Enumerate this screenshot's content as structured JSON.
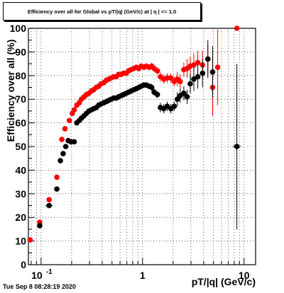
{
  "chart_data": {
    "type": "scatter",
    "title": "Efficiency over all for Global vs pT/|q| (GeV/c) at |  η | <= 1.0",
    "xlabel": "pT/|q| (GeV/c)",
    "ylabel": "Efficiency over all (%)",
    "xscale": "log",
    "xlim": [
      0.075,
      13
    ],
    "ylim": [
      0,
      100
    ],
    "grid": true,
    "legend": "none",
    "y_ticks": [
      "0",
      "10",
      "20",
      "30",
      "40",
      "50",
      "60",
      "70",
      "80",
      "90",
      "100"
    ],
    "x_tick_labels": [
      {
        "x": 0.1,
        "label": "10",
        "exp": "-1"
      },
      {
        "x": 1,
        "label": "1",
        "exp": ""
      },
      {
        "x": 10,
        "label": "10",
        "exp": ""
      }
    ],
    "series": [
      {
        "color": "#ff0000",
        "points": [
          [
            0.078,
            10.5,
            0,
            1
          ],
          [
            0.097,
            18,
            0.006,
            1
          ],
          [
            0.12,
            27.5,
            0,
            1
          ],
          [
            0.143,
            37,
            0,
            1
          ],
          [
            0.16,
            53,
            0,
            1
          ],
          [
            0.172,
            57.5,
            0,
            1
          ],
          [
            0.19,
            61,
            0,
            1
          ],
          [
            0.203,
            64,
            0,
            1
          ],
          [
            0.212,
            65.5,
            0,
            1
          ],
          [
            0.225,
            67.5,
            0,
            1
          ],
          [
            0.238,
            68.5,
            0,
            1
          ],
          [
            0.25,
            70,
            0,
            1
          ],
          [
            0.265,
            71,
            0,
            1
          ],
          [
            0.28,
            72,
            0,
            1
          ],
          [
            0.296,
            72.5,
            0,
            1
          ],
          [
            0.313,
            73.5,
            0,
            1
          ],
          [
            0.33,
            74,
            0,
            1
          ],
          [
            0.35,
            75,
            0,
            1
          ],
          [
            0.37,
            75.5,
            0,
            1
          ],
          [
            0.39,
            76.5,
            0,
            1
          ],
          [
            0.415,
            77,
            0,
            1
          ],
          [
            0.44,
            78,
            0,
            1
          ],
          [
            0.465,
            78.5,
            0,
            1
          ],
          [
            0.49,
            79,
            0,
            1
          ],
          [
            0.52,
            79.5,
            0,
            1
          ],
          [
            0.55,
            79.5,
            0,
            1
          ],
          [
            0.58,
            80.5,
            0,
            1
          ],
          [
            0.615,
            80.5,
            0,
            1
          ],
          [
            0.65,
            81,
            0,
            1
          ],
          [
            0.69,
            81,
            0,
            1
          ],
          [
            0.73,
            82,
            0,
            1
          ],
          [
            0.77,
            82.5,
            0,
            1
          ],
          [
            0.82,
            83,
            0,
            1
          ],
          [
            0.87,
            83.5,
            0,
            1
          ],
          [
            0.92,
            83,
            0,
            1
          ],
          [
            0.97,
            84,
            0,
            1
          ],
          [
            1.03,
            83.5,
            0,
            1.2
          ],
          [
            1.09,
            84,
            0,
            1.2
          ],
          [
            1.16,
            83.5,
            0,
            1.2
          ],
          [
            1.23,
            84,
            0,
            1.5
          ],
          [
            1.3,
            83,
            0,
            1.5
          ],
          [
            1.4,
            82,
            0,
            1.5
          ],
          [
            1.5,
            79.5,
            0,
            2
          ],
          [
            1.62,
            78.5,
            0,
            2
          ],
          [
            1.75,
            79,
            0,
            2
          ],
          [
            1.9,
            79,
            0,
            2
          ],
          [
            2.05,
            77.5,
            0,
            2
          ],
          [
            2.2,
            78.5,
            0,
            3
          ],
          [
            2.35,
            77.5,
            0,
            3
          ],
          [
            2.55,
            82.5,
            0,
            3
          ],
          [
            2.75,
            83,
            0,
            4
          ],
          [
            2.95,
            84,
            0,
            4
          ],
          [
            3.2,
            84.5,
            0,
            5
          ],
          [
            3.5,
            85.5,
            0,
            5
          ],
          [
            3.9,
            84.5,
            0,
            6
          ],
          [
            4.4,
            87,
            0,
            6
          ],
          [
            4.9,
            75,
            0,
            12
          ],
          [
            5.5,
            83.5,
            0,
            16
          ],
          [
            8.5,
            100,
            0,
            0
          ]
        ]
      },
      {
        "color": "#000000",
        "points": [
          [
            0.097,
            16.5,
            0.006,
            1
          ],
          [
            0.12,
            25,
            0.01,
            1
          ],
          [
            0.143,
            32,
            0,
            1
          ],
          [
            0.155,
            44,
            0,
            1
          ],
          [
            0.165,
            47,
            0,
            1
          ],
          [
            0.175,
            50,
            0,
            1
          ],
          [
            0.185,
            52.5,
            0,
            1
          ],
          [
            0.197,
            52,
            0,
            1
          ],
          [
            0.212,
            52,
            0,
            1
          ],
          [
            0.225,
            60,
            0,
            1
          ],
          [
            0.238,
            61,
            0,
            1
          ],
          [
            0.25,
            62,
            0,
            1
          ],
          [
            0.265,
            63,
            0,
            1
          ],
          [
            0.28,
            64,
            0,
            1
          ],
          [
            0.296,
            65,
            0,
            1
          ],
          [
            0.313,
            65.5,
            0,
            1
          ],
          [
            0.33,
            66,
            0,
            1
          ],
          [
            0.35,
            66.5,
            0,
            1
          ],
          [
            0.37,
            67.5,
            0,
            1
          ],
          [
            0.39,
            68,
            0,
            1
          ],
          [
            0.415,
            68.5,
            0,
            1
          ],
          [
            0.44,
            69,
            0,
            1
          ],
          [
            0.465,
            69.5,
            0,
            1
          ],
          [
            0.49,
            70,
            0,
            1
          ],
          [
            0.52,
            70.5,
            0,
            1
          ],
          [
            0.55,
            70.5,
            0,
            1
          ],
          [
            0.58,
            71,
            0,
            1
          ],
          [
            0.615,
            71.5,
            0,
            1
          ],
          [
            0.65,
            72,
            0,
            1
          ],
          [
            0.69,
            72.5,
            0,
            1
          ],
          [
            0.73,
            73,
            0,
            1
          ],
          [
            0.77,
            73.5,
            0,
            1
          ],
          [
            0.82,
            74,
            0,
            1
          ],
          [
            0.87,
            74.5,
            0,
            1
          ],
          [
            0.92,
            75,
            0,
            1
          ],
          [
            0.97,
            75.5,
            0,
            1
          ],
          [
            1.03,
            76,
            0,
            1.2
          ],
          [
            1.09,
            76,
            0,
            1.2
          ],
          [
            1.16,
            75.5,
            0,
            1.2
          ],
          [
            1.23,
            75,
            0,
            1.5
          ],
          [
            1.3,
            73,
            0,
            1.5
          ],
          [
            1.4,
            72,
            0,
            1.5
          ],
          [
            1.5,
            66.5,
            0,
            2
          ],
          [
            1.62,
            66,
            0,
            2
          ],
          [
            1.75,
            67,
            0,
            2
          ],
          [
            1.9,
            66,
            0,
            2
          ],
          [
            2.05,
            67,
            0,
            2
          ],
          [
            2.2,
            70,
            0,
            3
          ],
          [
            2.35,
            71.5,
            0,
            3
          ],
          [
            2.55,
            72.5,
            0,
            3
          ],
          [
            2.75,
            71,
            0,
            3
          ],
          [
            2.95,
            76.5,
            0,
            4
          ],
          [
            3.2,
            78.5,
            0,
            5
          ],
          [
            3.5,
            79.5,
            0,
            5
          ],
          [
            3.9,
            81,
            0,
            6
          ],
          [
            4.4,
            87,
            0,
            8
          ],
          [
            4.9,
            81.5,
            0,
            11
          ],
          [
            8.5,
            50,
            0.8,
            35
          ]
        ]
      }
    ]
  },
  "footer": {
    "timestamp": "Tue Sep  8 08:28:19 2020"
  }
}
